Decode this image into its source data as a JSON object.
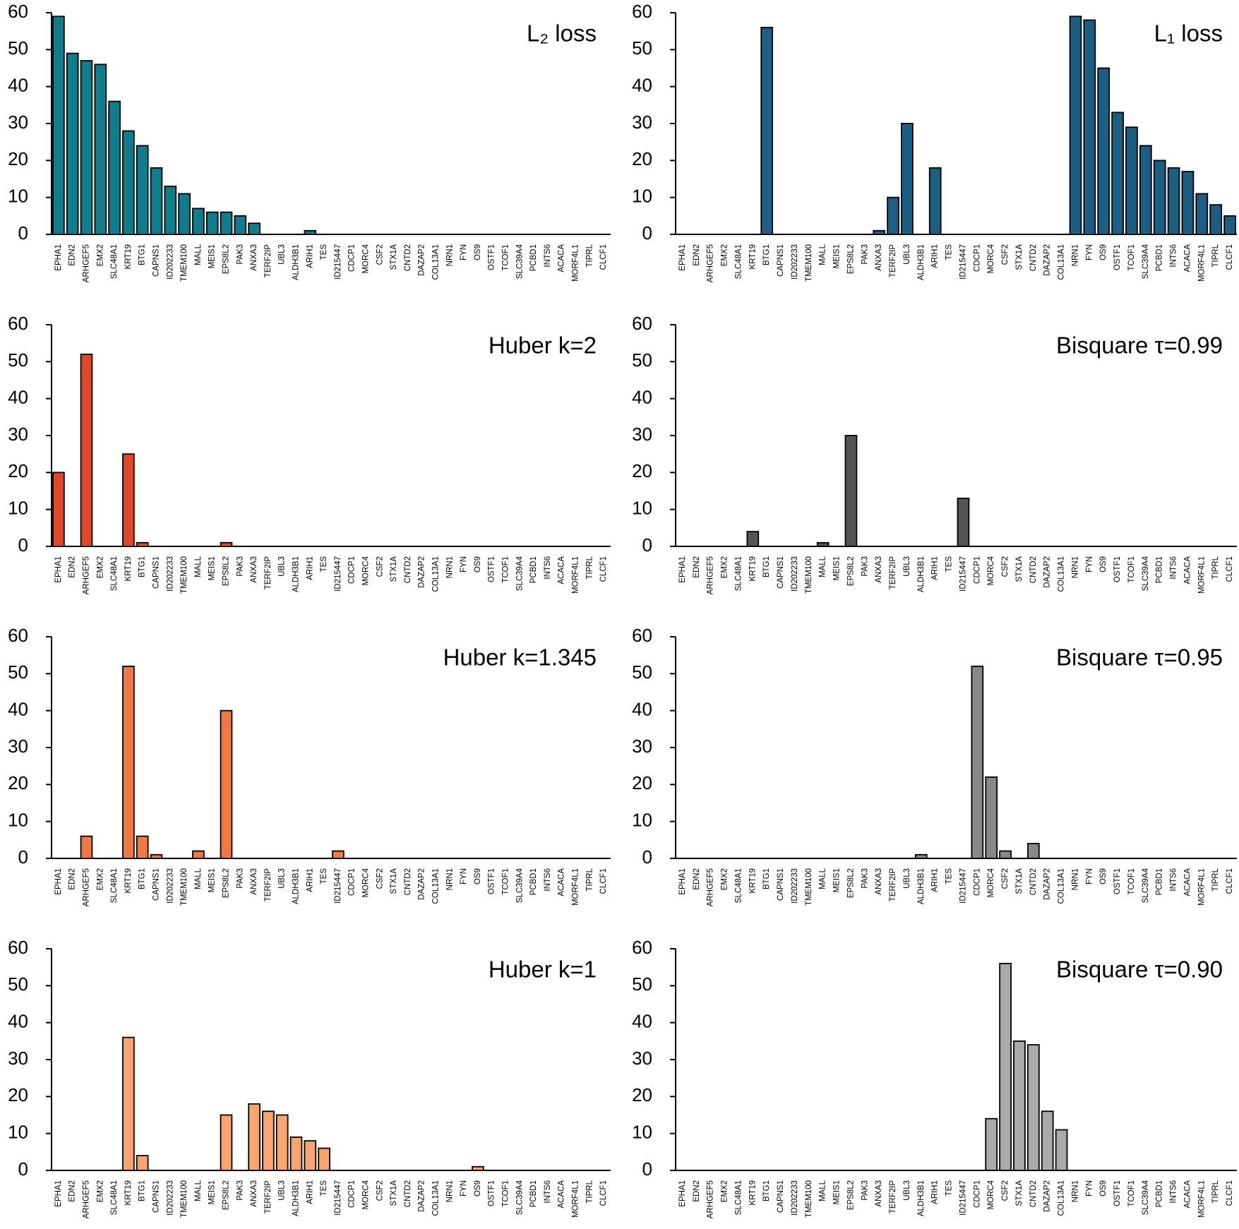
{
  "chart_data": [
    {
      "type": "bar",
      "title": "L₂ loss",
      "color": "#0f7d8c",
      "ylim": [
        0,
        60
      ],
      "yticks": [
        0,
        10,
        20,
        30,
        40,
        50,
        60
      ],
      "categories": [
        "EPHA1",
        "EDN2",
        "ARHGEF5",
        "EMX2",
        "SLC48A1",
        "KRT19",
        "BTG1",
        "CAPNS1",
        "ID202233",
        "TMEM100",
        "MALL",
        "MEIS1",
        "EPS8L2",
        "PAK3",
        "ANXA3",
        "TERF2IP",
        "UBL3",
        "ALDH3B1",
        "ARIH1",
        "TES",
        "ID215447",
        "CDCP1",
        "MORC4",
        "CSF2",
        "STX1A",
        "CNTD2",
        "DAZAP2",
        "COL13A1",
        "NRN1",
        "FYN",
        "OS9",
        "OSTF1",
        "TCOF1",
        "SLC39A4",
        "PCBD1",
        "INTS6",
        "ACACA",
        "MORF4L1",
        "TIPRL",
        "CLCF1"
      ],
      "values": [
        59,
        49,
        47,
        46,
        36,
        28,
        24,
        18,
        13,
        11,
        7,
        6,
        6,
        5,
        3,
        0,
        0,
        0,
        1,
        0,
        0,
        0,
        0,
        0,
        0,
        0,
        0,
        0,
        0,
        0,
        0,
        0,
        0,
        0,
        0,
        0,
        0,
        0,
        0,
        0
      ]
    },
    {
      "type": "bar",
      "title": "L₁ loss",
      "color": "#1c5f82",
      "ylim": [
        0,
        60
      ],
      "yticks": [
        0,
        10,
        20,
        30,
        40,
        50,
        60
      ],
      "categories": [
        "EPHA1",
        "EDN2",
        "ARHGEF5",
        "EMX2",
        "SLC48A1",
        "KRT19",
        "BTG1",
        "CAPNS1",
        "ID202233",
        "TMEM100",
        "MALL",
        "MEIS1",
        "EPS8L2",
        "PAK3",
        "ANXA3",
        "TERF2IP",
        "UBL3",
        "ALDH3B1",
        "ARIH1",
        "TES",
        "ID215447",
        "CDCP1",
        "MORC4",
        "CSF2",
        "STX1A",
        "CNTD2",
        "DAZAP2",
        "COL13A1",
        "NRN1",
        "FYN",
        "OS9",
        "OSTF1",
        "TCOF1",
        "SLC39A4",
        "PCBD1",
        "INTS6",
        "ACACA",
        "MORF4L1",
        "TIPRL",
        "CLCF1"
      ],
      "values": [
        0,
        0,
        0,
        0,
        0,
        0,
        56,
        0,
        0,
        0,
        0,
        0,
        0,
        0,
        1,
        10,
        30,
        0,
        18,
        0,
        0,
        0,
        0,
        0,
        0,
        0,
        0,
        0,
        59,
        58,
        45,
        33,
        29,
        24,
        20,
        18,
        17,
        11,
        8,
        5
      ]
    },
    {
      "type": "bar",
      "title": "Huber k=2",
      "color": "#e0482a",
      "ylim": [
        0,
        60
      ],
      "yticks": [
        0,
        10,
        20,
        30,
        40,
        50,
        60
      ],
      "categories": [
        "EPHA1",
        "EDN2",
        "ARHGEF5",
        "EMX2",
        "SLC48A1",
        "KRT19",
        "BTG1",
        "CAPNS1",
        "ID202233",
        "TMEM100",
        "MALL",
        "MEIS1",
        "EPS8L2",
        "PAK3",
        "ANXA3",
        "TERF2IP",
        "UBL3",
        "ALDH3B1",
        "ARIH1",
        "TES",
        "ID215447",
        "CDCP1",
        "MORC4",
        "CSF2",
        "STX1A",
        "CNTD2",
        "DAZAP2",
        "COL13A1",
        "NRN1",
        "FYN",
        "OS9",
        "OSTF1",
        "TCOF1",
        "SLC39A4",
        "PCBD1",
        "INTS6",
        "ACACA",
        "MORF4L1",
        "TIPRL",
        "CLCF1"
      ],
      "values": [
        20,
        0,
        52,
        0,
        0,
        25,
        1,
        0,
        0,
        0,
        0,
        0,
        1,
        0,
        0,
        0,
        0,
        0,
        0,
        0,
        0,
        0,
        0,
        0,
        0,
        0,
        0,
        0,
        0,
        0,
        0,
        0,
        0,
        0,
        0,
        0,
        0,
        0,
        0,
        0
      ]
    },
    {
      "type": "bar",
      "title": "Bisquare τ=0.99",
      "color": "#555555",
      "ylim": [
        0,
        60
      ],
      "yticks": [
        0,
        10,
        20,
        30,
        40,
        50,
        60
      ],
      "categories": [
        "EPHA1",
        "EDN2",
        "ARHGEF5",
        "EMX2",
        "SLC48A1",
        "KRT19",
        "BTG1",
        "CAPNS1",
        "ID202233",
        "TMEM100",
        "MALL",
        "MEIS1",
        "EPS8L2",
        "PAK3",
        "ANXA3",
        "TERF2IP",
        "UBL3",
        "ALDH3B1",
        "ARIH1",
        "TES",
        "ID215447",
        "CDCP1",
        "MORC4",
        "CSF2",
        "STX1A",
        "CNTD2",
        "DAZAP2",
        "COL13A1",
        "NRN1",
        "FYN",
        "OS9",
        "OSTF1",
        "TCOF1",
        "SLC39A4",
        "PCBD1",
        "INTS6",
        "ACACA",
        "MORF4L1",
        "TIPRL",
        "CLCF1"
      ],
      "values": [
        0,
        0,
        0,
        0,
        0,
        4,
        0,
        0,
        0,
        0,
        1,
        0,
        30,
        0,
        0,
        0,
        0,
        0,
        0,
        0,
        13,
        0,
        0,
        0,
        0,
        0,
        0,
        0,
        0,
        0,
        0,
        0,
        0,
        0,
        0,
        0,
        0,
        0,
        0,
        0
      ]
    },
    {
      "type": "bar",
      "title": "Huber k=1.345",
      "color": "#f07a45",
      "ylim": [
        0,
        60
      ],
      "yticks": [
        0,
        10,
        20,
        30,
        40,
        50,
        60
      ],
      "categories": [
        "EPHA1",
        "EDN2",
        "ARHGEF5",
        "EMX2",
        "SLC48A1",
        "KRT19",
        "BTG1",
        "CAPNS1",
        "ID202233",
        "TMEM100",
        "MALL",
        "MEIS1",
        "EPS8L2",
        "PAK3",
        "ANXA3",
        "TERF2IP",
        "UBL3",
        "ALDH3B1",
        "ARIH1",
        "TES",
        "ID215447",
        "CDCP1",
        "MORC4",
        "CSF2",
        "STX1A",
        "CNTD2",
        "DAZAP2",
        "COL13A1",
        "NRN1",
        "FYN",
        "OS9",
        "OSTF1",
        "TCOF1",
        "SLC39A4",
        "PCBD1",
        "INTS6",
        "ACACA",
        "MORF4L1",
        "TIPRL",
        "CLCF1"
      ],
      "values": [
        0,
        0,
        6,
        0,
        0,
        52,
        6,
        1,
        0,
        0,
        2,
        0,
        40,
        0,
        0,
        0,
        0,
        0,
        0,
        0,
        2,
        0,
        0,
        0,
        0,
        0,
        0,
        0,
        0,
        0,
        0,
        0,
        0,
        0,
        0,
        0,
        0,
        0,
        0,
        0
      ]
    },
    {
      "type": "bar",
      "title": "Bisquare τ=0.95",
      "color": "#888888",
      "ylim": [
        0,
        60
      ],
      "yticks": [
        0,
        10,
        20,
        30,
        40,
        50,
        60
      ],
      "categories": [
        "EPHA1",
        "EDN2",
        "ARHGEF5",
        "EMX2",
        "SLC48A1",
        "KRT19",
        "BTG1",
        "CAPNS1",
        "ID202233",
        "TMEM100",
        "MALL",
        "MEIS1",
        "EPS8L2",
        "PAK3",
        "ANXA3",
        "TERF2IP",
        "UBL3",
        "ALDH3B1",
        "ARIH1",
        "TES",
        "ID215447",
        "CDCP1",
        "MORC4",
        "CSF2",
        "STX1A",
        "CNTD2",
        "DAZAP2",
        "COL13A1",
        "NRN1",
        "FYN",
        "OS9",
        "OSTF1",
        "TCOF1",
        "SLC39A4",
        "PCBD1",
        "INTS6",
        "ACACA",
        "MORF4L1",
        "TIPRL",
        "CLCF1"
      ],
      "values": [
        0,
        0,
        0,
        0,
        0,
        0,
        0,
        0,
        0,
        0,
        0,
        0,
        0,
        0,
        0,
        0,
        0,
        1,
        0,
        0,
        0,
        52,
        22,
        2,
        0,
        4,
        0,
        0,
        0,
        0,
        0,
        0,
        0,
        0,
        0,
        0,
        0,
        0,
        0,
        0
      ]
    },
    {
      "type": "bar",
      "title": "Huber k=1",
      "color": "#f7a46e",
      "ylim": [
        0,
        60
      ],
      "yticks": [
        0,
        10,
        20,
        30,
        40,
        50,
        60
      ],
      "categories": [
        "EPHA1",
        "EDN2",
        "ARHGEF5",
        "EMX2",
        "SLC48A1",
        "KRT19",
        "BTG1",
        "CAPNS1",
        "ID202233",
        "TMEM100",
        "MALL",
        "MEIS1",
        "EPS8L2",
        "PAK3",
        "ANXA3",
        "TERF2IP",
        "UBL3",
        "ALDH3B1",
        "ARIH1",
        "TES",
        "ID215447",
        "CDCP1",
        "MORC4",
        "CSF2",
        "STX1A",
        "CNTD2",
        "DAZAP2",
        "COL13A1",
        "NRN1",
        "FYN",
        "OS9",
        "OSTF1",
        "TCOF1",
        "SLC39A4",
        "PCBD1",
        "INTS6",
        "ACACA",
        "MORF4L1",
        "TIPRL",
        "CLCF1"
      ],
      "values": [
        0,
        0,
        0,
        0,
        0,
        36,
        4,
        0,
        0,
        0,
        0,
        0,
        15,
        0,
        18,
        16,
        15,
        9,
        8,
        6,
        0,
        0,
        0,
        0,
        0,
        0,
        0,
        0,
        0,
        0,
        1,
        0,
        0,
        0,
        0,
        0,
        0,
        0,
        0,
        0
      ]
    },
    {
      "type": "bar",
      "title": "Bisquare τ=0.90",
      "color": "#aaaaaa",
      "ylim": [
        0,
        60
      ],
      "yticks": [
        0,
        10,
        20,
        30,
        40,
        50,
        60
      ],
      "categories": [
        "EPHA1",
        "EDN2",
        "ARHGEF5",
        "EMX2",
        "SLC48A1",
        "KRT19",
        "BTG1",
        "CAPNS1",
        "ID202233",
        "TMEM100",
        "MALL",
        "MEIS1",
        "EPS8L2",
        "PAK3",
        "ANXA3",
        "TERF2IP",
        "UBL3",
        "ALDH3B1",
        "ARIH1",
        "TES",
        "ID215447",
        "CDCP1",
        "MORC4",
        "CSF2",
        "STX1A",
        "CNTD2",
        "DAZAP2",
        "COL13A1",
        "NRN1",
        "FYN",
        "OS9",
        "OSTF1",
        "TCOF1",
        "SLC39A4",
        "PCBD1",
        "INTS6",
        "ACACA",
        "MORF4L1",
        "TIPRL",
        "CLCF1"
      ],
      "values": [
        0,
        0,
        0,
        0,
        0,
        0,
        0,
        0,
        0,
        0,
        0,
        0,
        0,
        0,
        0,
        0,
        0,
        0,
        0,
        0,
        0,
        0,
        14,
        56,
        35,
        34,
        16,
        11,
        0,
        0,
        0,
        0,
        0,
        0,
        0,
        0,
        0,
        0,
        0,
        0
      ]
    }
  ]
}
